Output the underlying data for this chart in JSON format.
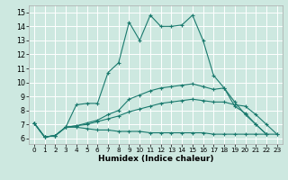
{
  "xlabel": "Humidex (Indice chaleur)",
  "bg_color": "#cde8e0",
  "grid_color": "#ffffff",
  "line_color": "#1a7a6e",
  "xlim": [
    -0.5,
    23.5
  ],
  "ylim": [
    5.6,
    15.5
  ],
  "xticks": [
    0,
    1,
    2,
    3,
    4,
    5,
    6,
    7,
    8,
    9,
    10,
    11,
    12,
    13,
    14,
    15,
    16,
    17,
    18,
    19,
    20,
    21,
    22,
    23
  ],
  "yticks": [
    6,
    7,
    8,
    9,
    10,
    11,
    12,
    13,
    14,
    15
  ],
  "lines": [
    [
      7.1,
      6.1,
      6.2,
      6.8,
      8.4,
      8.5,
      8.5,
      10.7,
      11.4,
      14.3,
      13.0,
      14.8,
      14.0,
      14.0,
      14.1,
      14.8,
      13.0,
      10.5,
      9.6,
      8.3,
      7.8,
      7.0,
      6.3,
      null
    ],
    [
      7.1,
      6.1,
      6.2,
      6.8,
      6.8,
      6.7,
      6.6,
      6.6,
      6.5,
      6.5,
      6.5,
      6.4,
      6.4,
      6.4,
      6.4,
      6.4,
      6.4,
      6.3,
      6.3,
      6.3,
      6.3,
      6.3,
      6.3,
      6.3
    ],
    [
      7.1,
      6.1,
      6.2,
      6.8,
      6.9,
      7.0,
      7.2,
      7.4,
      7.6,
      7.9,
      8.1,
      8.3,
      8.5,
      8.6,
      8.7,
      8.8,
      8.7,
      8.6,
      8.6,
      8.4,
      8.3,
      7.7,
      7.0,
      6.3
    ],
    [
      7.1,
      6.1,
      6.2,
      6.8,
      6.9,
      7.1,
      7.3,
      7.7,
      8.0,
      8.8,
      9.1,
      9.4,
      9.6,
      9.7,
      9.8,
      9.9,
      9.7,
      9.5,
      9.6,
      8.6,
      7.7,
      7.0,
      6.3,
      null
    ]
  ]
}
